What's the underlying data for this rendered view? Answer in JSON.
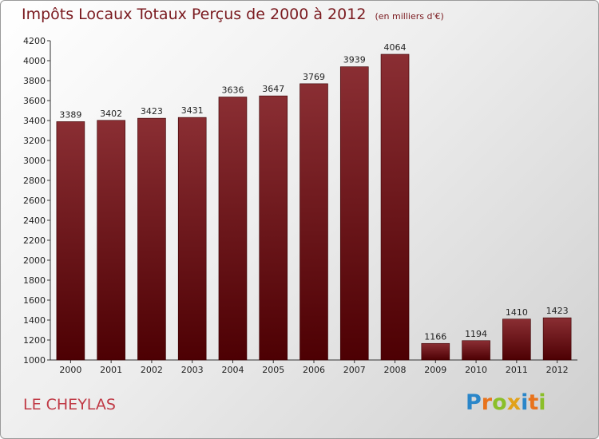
{
  "title": "Impôts Locaux Totaux Perçus de 2000 à 2012",
  "unit_note": "(en milliers d'€)",
  "commune": "LE CHEYLAS",
  "brand": {
    "letters": [
      "P",
      "r",
      "o",
      "x",
      "i",
      "t",
      "i"
    ],
    "colors": [
      "#2a86c9",
      "#e8731c",
      "#8bbf2a",
      "#e1a21a",
      "#2a86c9",
      "#e8731c",
      "#8bbf2a"
    ]
  },
  "colors": {
    "bar_top": "#8a2e33",
    "bar_bottom": "#4d0003",
    "title": "#7a1a1f",
    "commune": "#c03a46"
  },
  "chart_data": {
    "type": "bar",
    "title": "Impôts Locaux Totaux Perçus de 2000 à 2012",
    "subtitle": "(en milliers d'€)",
    "categories": [
      "2000",
      "2001",
      "2002",
      "2003",
      "2004",
      "2005",
      "2006",
      "2007",
      "2008",
      "2009",
      "2010",
      "2011",
      "2012"
    ],
    "values": [
      3389,
      3402,
      3423,
      3431,
      3636,
      3647,
      3769,
      3939,
      4064,
      1166,
      1194,
      1410,
      1423
    ],
    "ylim": [
      1000,
      4200
    ],
    "yticks": [
      1000,
      1200,
      1400,
      1600,
      1800,
      2000,
      2200,
      2400,
      2600,
      2800,
      3000,
      3200,
      3400,
      3600,
      3800,
      4000,
      4200
    ],
    "grid": false,
    "legend": "none"
  }
}
